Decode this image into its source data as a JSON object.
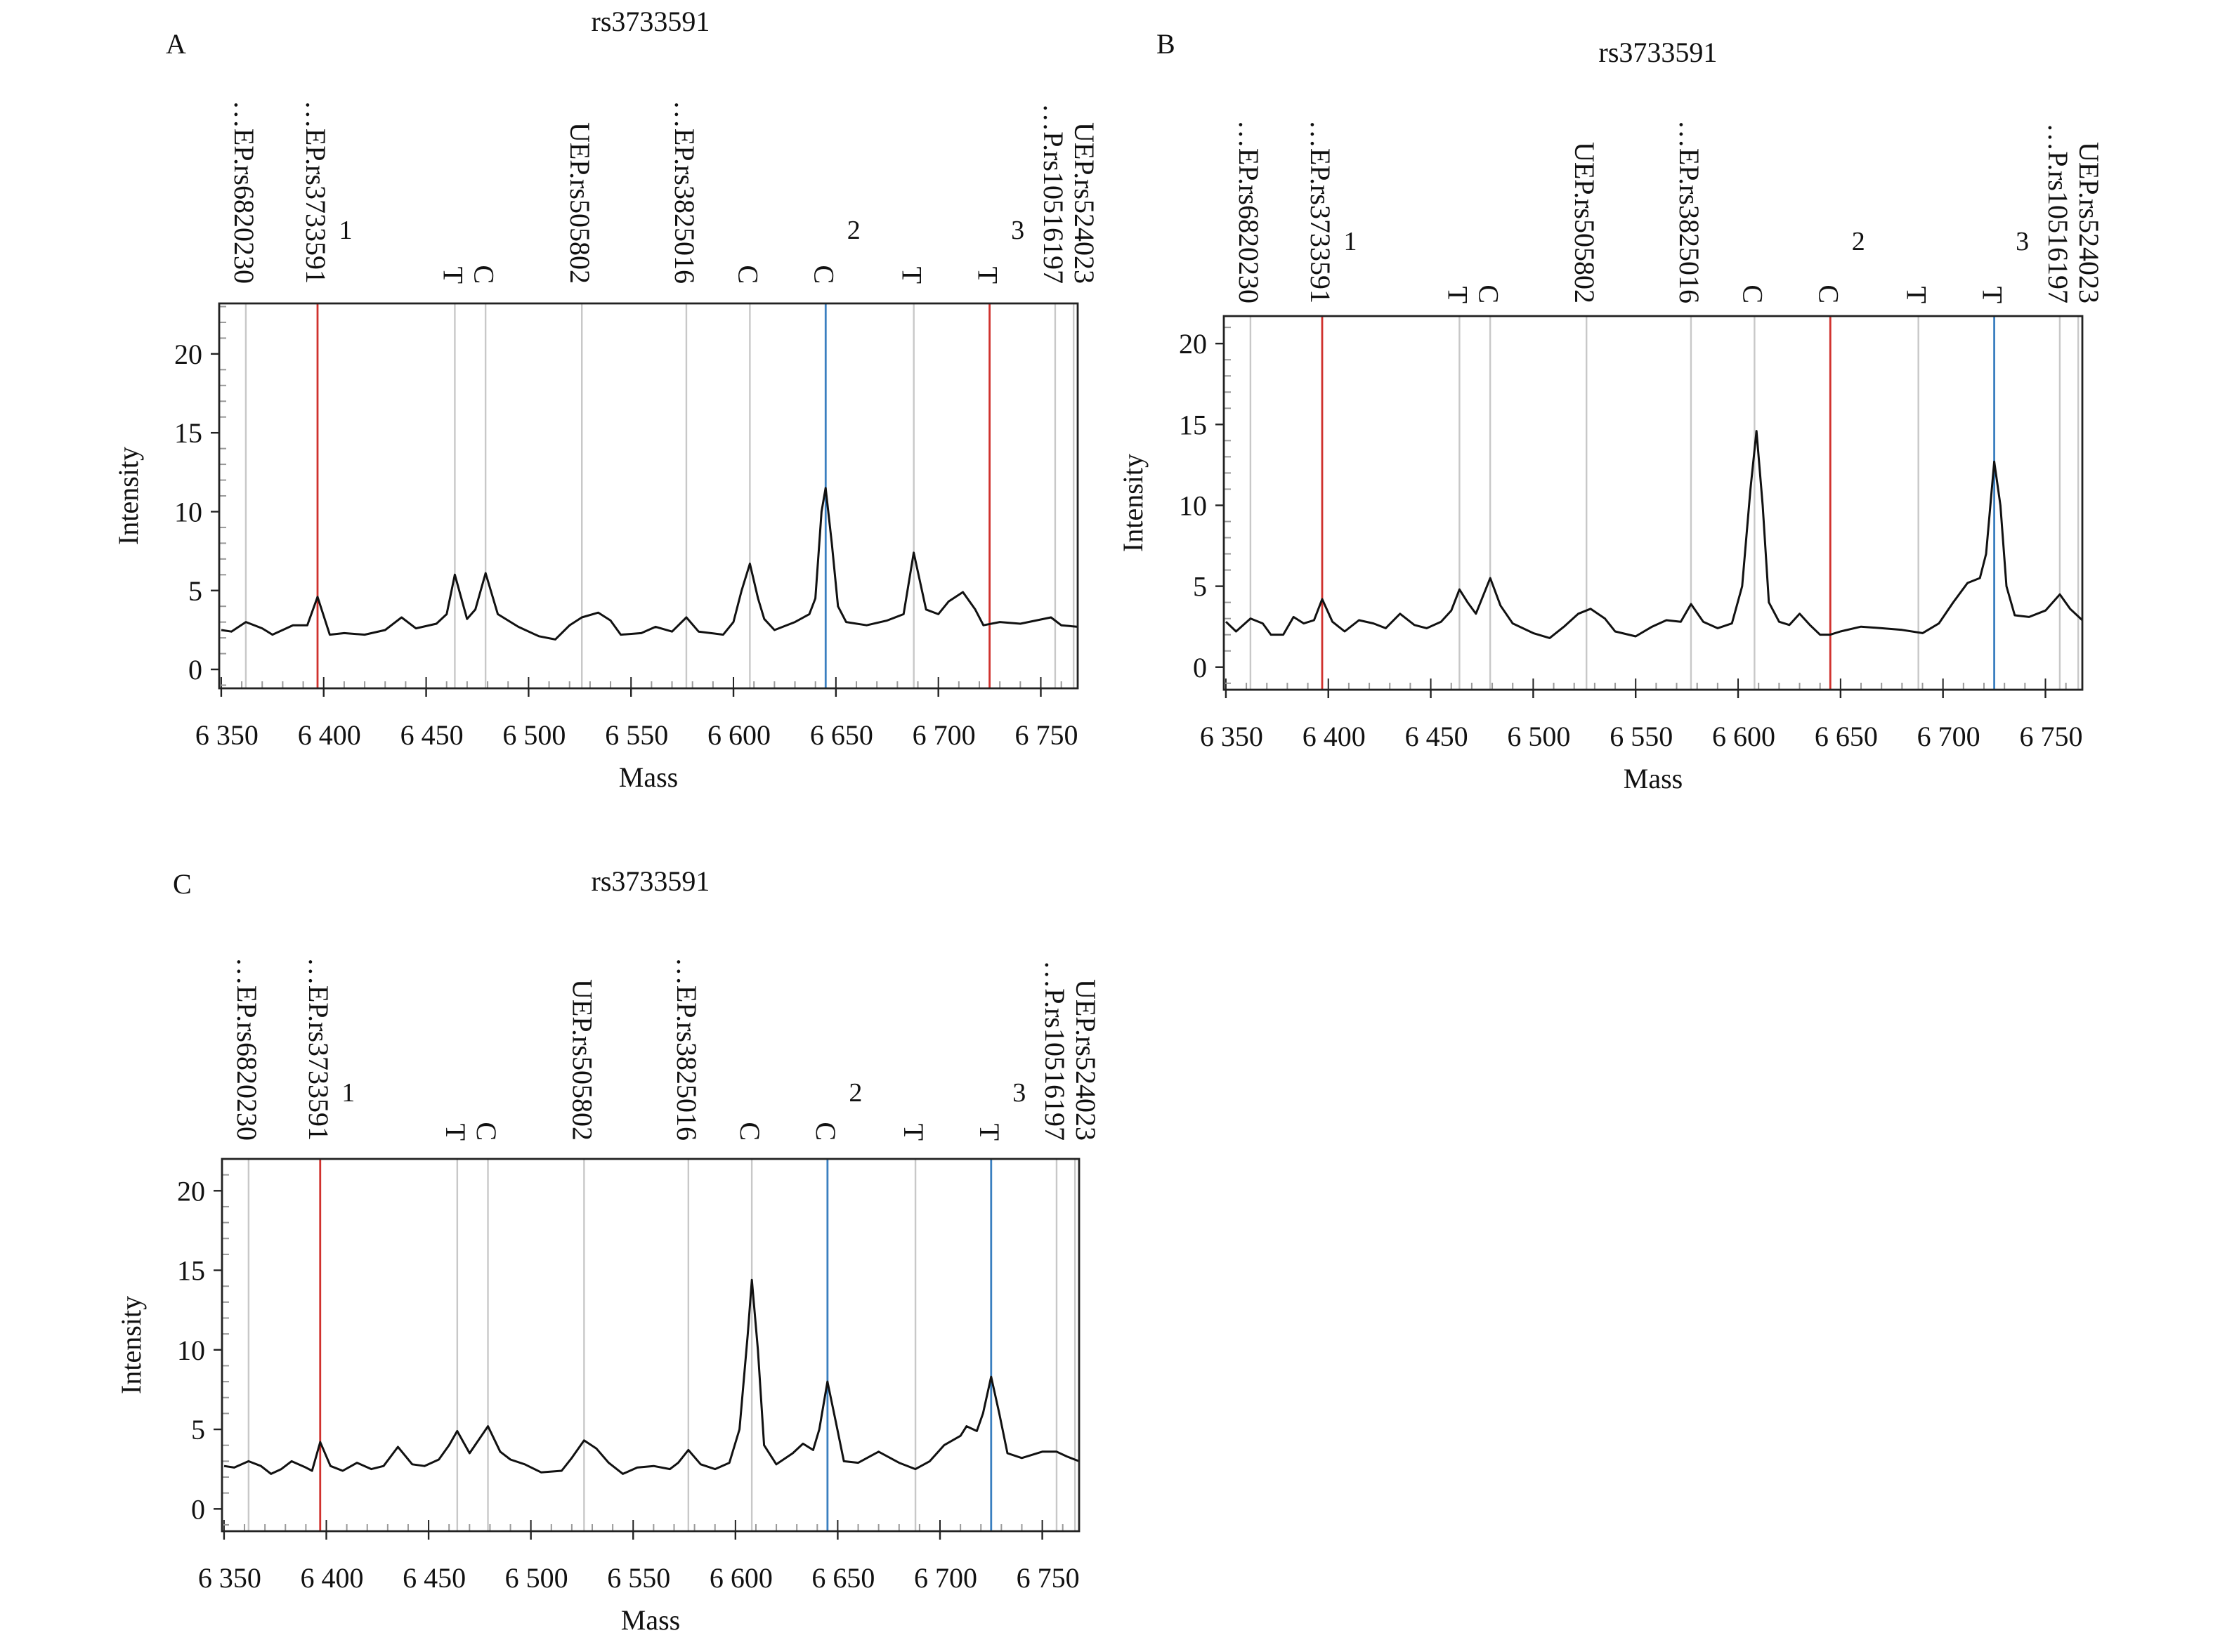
{
  "chart_data": [
    {
      "type": "line",
      "panel_label": "A",
      "title": "rs3733591",
      "xlabel": "Mass",
      "ylabel": "Intensity",
      "xlim": [
        6349,
        6768
      ],
      "ylim": [
        -1.2,
        23.2
      ],
      "xticks": [
        6350,
        6400,
        6450,
        6500,
        6550,
        6600,
        6650,
        6700,
        6750
      ],
      "xtick_labels": [
        "6 350",
        "6 400",
        "6 450",
        "6 500",
        "6 550",
        "6 600",
        "6 650",
        "6 700",
        "6 750"
      ],
      "yticks": [
        0,
        5,
        10,
        15,
        20
      ],
      "ytick_labels": [
        "0",
        "5",
        "10",
        "15",
        "20"
      ],
      "grid": false,
      "markers": [
        {
          "mass": 6362,
          "label": "…EP.rs6820230",
          "color": "#c8c8c8"
        },
        {
          "mass": 6397,
          "label": "…EP.rs3733591",
          "number": "1",
          "color": "#d0312d"
        },
        {
          "mass": 6464,
          "label": "T",
          "color": "#c8c8c8"
        },
        {
          "mass": 6479,
          "label": "C",
          "color": "#c8c8c8"
        },
        {
          "mass": 6526,
          "label": "UEP.rs505802",
          "color": "#c8c8c8"
        },
        {
          "mass": 6577,
          "label": "…EP.rs3825016",
          "color": "#c8c8c8"
        },
        {
          "mass": 6608,
          "label": "C",
          "color": "#c8c8c8"
        },
        {
          "mass": 6645,
          "label": "C",
          "number": "2",
          "color": "#3a7fc0"
        },
        {
          "mass": 6688,
          "label": "T",
          "color": "#c8c8c8"
        },
        {
          "mass": 6725,
          "label": "T",
          "number": "3",
          "color": "#d0312d"
        },
        {
          "mass": 6757,
          "label": "…P.rs10516197",
          "color": "#c8c8c8"
        },
        {
          "mass": 6766,
          "label": "UEP.rs524023",
          "color": "#c8c8c8"
        }
      ],
      "trace": [
        [
          6350,
          2.5
        ],
        [
          6355,
          2.4
        ],
        [
          6362,
          3.0
        ],
        [
          6370,
          2.6
        ],
        [
          6375,
          2.2
        ],
        [
          6385,
          2.8
        ],
        [
          6392,
          2.8
        ],
        [
          6397,
          4.6
        ],
        [
          6403,
          2.2
        ],
        [
          6410,
          2.3
        ],
        [
          6420,
          2.2
        ],
        [
          6430,
          2.5
        ],
        [
          6438,
          3.3
        ],
        [
          6445,
          2.6
        ],
        [
          6455,
          2.9
        ],
        [
          6460,
          3.5
        ],
        [
          6464,
          6.0
        ],
        [
          6470,
          3.2
        ],
        [
          6474,
          3.8
        ],
        [
          6479,
          6.1
        ],
        [
          6485,
          3.5
        ],
        [
          6495,
          2.7
        ],
        [
          6505,
          2.1
        ],
        [
          6513,
          1.9
        ],
        [
          6520,
          2.8
        ],
        [
          6526,
          3.3
        ],
        [
          6534,
          3.6
        ],
        [
          6540,
          3.1
        ],
        [
          6545,
          2.2
        ],
        [
          6555,
          2.3
        ],
        [
          6562,
          2.7
        ],
        [
          6570,
          2.4
        ],
        [
          6577,
          3.3
        ],
        [
          6583,
          2.4
        ],
        [
          6595,
          2.2
        ],
        [
          6600,
          3.0
        ],
        [
          6604,
          5.0
        ],
        [
          6608,
          6.7
        ],
        [
          6612,
          4.5
        ],
        [
          6615,
          3.2
        ],
        [
          6620,
          2.5
        ],
        [
          6630,
          3.0
        ],
        [
          6637,
          3.5
        ],
        [
          6640,
          4.5
        ],
        [
          6643,
          10.0
        ],
        [
          6645,
          11.5
        ],
        [
          6648,
          8.0
        ],
        [
          6651,
          4.0
        ],
        [
          6655,
          3.0
        ],
        [
          6665,
          2.8
        ],
        [
          6675,
          3.1
        ],
        [
          6683,
          3.5
        ],
        [
          6688,
          7.4
        ],
        [
          6694,
          3.8
        ],
        [
          6700,
          3.5
        ],
        [
          6705,
          4.3
        ],
        [
          6712,
          4.9
        ],
        [
          6718,
          3.8
        ],
        [
          6722,
          2.8
        ],
        [
          6730,
          3.0
        ],
        [
          6740,
          2.9
        ],
        [
          6755,
          3.3
        ],
        [
          6760,
          2.8
        ],
        [
          6768,
          2.7
        ]
      ]
    },
    {
      "type": "line",
      "panel_label": "B",
      "title": "rs3733591",
      "xlabel": "Mass",
      "ylabel": "Intensity",
      "xlim": [
        6349,
        6768
      ],
      "ylim": [
        -1.4,
        21.7
      ],
      "xticks": [
        6350,
        6400,
        6450,
        6500,
        6550,
        6600,
        6650,
        6700,
        6750
      ],
      "xtick_labels": [
        "6 350",
        "6 400",
        "6 450",
        "6 500",
        "6 550",
        "6 600",
        "6 650",
        "6 700",
        "6 750"
      ],
      "yticks": [
        0,
        5,
        10,
        15,
        20
      ],
      "ytick_labels": [
        "0",
        "5",
        "10",
        "15",
        "20"
      ],
      "grid": false,
      "markers": [
        {
          "mass": 6362,
          "label": "…EP.rs6820230",
          "color": "#c8c8c8"
        },
        {
          "mass": 6397,
          "label": "…EP.rs3733591",
          "number": "1",
          "color": "#d0312d"
        },
        {
          "mass": 6464,
          "label": "T",
          "color": "#c8c8c8"
        },
        {
          "mass": 6479,
          "label": "C",
          "color": "#c8c8c8"
        },
        {
          "mass": 6526,
          "label": "UEP.rs505802",
          "color": "#c8c8c8"
        },
        {
          "mass": 6577,
          "label": "…EP.rs3825016",
          "color": "#c8c8c8"
        },
        {
          "mass": 6608,
          "label": "C",
          "color": "#c8c8c8"
        },
        {
          "mass": 6645,
          "label": "C",
          "number": "2",
          "color": "#d0312d"
        },
        {
          "mass": 6688,
          "label": "T",
          "color": "#c8c8c8"
        },
        {
          "mass": 6725,
          "label": "T",
          "number": "3",
          "color": "#3a7fc0"
        },
        {
          "mass": 6757,
          "label": "…P.rs10516197",
          "color": "#c8c8c8"
        },
        {
          "mass": 6766,
          "label": "UEP.rs524023",
          "color": "#c8c8c8"
        }
      ],
      "trace": [
        [
          6350,
          2.8
        ],
        [
          6355,
          2.2
        ],
        [
          6362,
          3.0
        ],
        [
          6368,
          2.7
        ],
        [
          6372,
          2.0
        ],
        [
          6378,
          2.0
        ],
        [
          6383,
          3.1
        ],
        [
          6388,
          2.7
        ],
        [
          6393,
          2.9
        ],
        [
          6397,
          4.2
        ],
        [
          6402,
          2.8
        ],
        [
          6408,
          2.2
        ],
        [
          6415,
          2.9
        ],
        [
          6422,
          2.7
        ],
        [
          6428,
          2.4
        ],
        [
          6435,
          3.3
        ],
        [
          6442,
          2.6
        ],
        [
          6448,
          2.4
        ],
        [
          6455,
          2.8
        ],
        [
          6460,
          3.5
        ],
        [
          6464,
          4.8
        ],
        [
          6468,
          4.0
        ],
        [
          6472,
          3.3
        ],
        [
          6479,
          5.5
        ],
        [
          6484,
          3.8
        ],
        [
          6490,
          2.7
        ],
        [
          6500,
          2.1
        ],
        [
          6508,
          1.8
        ],
        [
          6515,
          2.5
        ],
        [
          6522,
          3.3
        ],
        [
          6528,
          3.6
        ],
        [
          6535,
          3.0
        ],
        [
          6540,
          2.2
        ],
        [
          6550,
          1.9
        ],
        [
          6558,
          2.5
        ],
        [
          6565,
          2.9
        ],
        [
          6572,
          2.8
        ],
        [
          6577,
          3.9
        ],
        [
          6583,
          2.8
        ],
        [
          6590,
          2.4
        ],
        [
          6597,
          2.7
        ],
        [
          6602,
          5.0
        ],
        [
          6606,
          11.0
        ],
        [
          6609,
          14.6
        ],
        [
          6612,
          10.0
        ],
        [
          6615,
          4.0
        ],
        [
          6620,
          2.8
        ],
        [
          6625,
          2.6
        ],
        [
          6630,
          3.3
        ],
        [
          6635,
          2.6
        ],
        [
          6640,
          2.0
        ],
        [
          6645,
          2.0
        ],
        [
          6650,
          2.2
        ],
        [
          6660,
          2.5
        ],
        [
          6670,
          2.4
        ],
        [
          6680,
          2.3
        ],
        [
          6690,
          2.1
        ],
        [
          6698,
          2.7
        ],
        [
          6705,
          4.0
        ],
        [
          6712,
          5.2
        ],
        [
          6718,
          5.5
        ],
        [
          6721,
          7.0
        ],
        [
          6725,
          12.7
        ],
        [
          6728,
          10.0
        ],
        [
          6731,
          5.0
        ],
        [
          6735,
          3.2
        ],
        [
          6742,
          3.1
        ],
        [
          6750,
          3.5
        ],
        [
          6757,
          4.5
        ],
        [
          6762,
          3.6
        ],
        [
          6768,
          2.9
        ]
      ]
    },
    {
      "type": "line",
      "panel_label": "C",
      "title": "rs3733591",
      "xlabel": "Mass",
      "ylabel": "Intensity",
      "xlim": [
        6349,
        6768
      ],
      "ylim": [
        -1.4,
        22.0
      ],
      "xticks": [
        6350,
        6400,
        6450,
        6500,
        6550,
        6600,
        6650,
        6700,
        6750
      ],
      "xtick_labels": [
        "6 350",
        "6 400",
        "6 450",
        "6 500",
        "6 550",
        "6 600",
        "6 650",
        "6 700",
        "6 750"
      ],
      "yticks": [
        0,
        5,
        10,
        15,
        20
      ],
      "ytick_labels": [
        "0",
        "5",
        "10",
        "15",
        "20"
      ],
      "grid": false,
      "markers": [
        {
          "mass": 6362,
          "label": "…EP.rs6820230",
          "color": "#c8c8c8"
        },
        {
          "mass": 6397,
          "label": "…EP.rs3733591",
          "number": "1",
          "color": "#d0312d"
        },
        {
          "mass": 6464,
          "label": "T",
          "color": "#c8c8c8"
        },
        {
          "mass": 6479,
          "label": "C",
          "color": "#c8c8c8"
        },
        {
          "mass": 6526,
          "label": "UEP.rs505802",
          "color": "#c8c8c8"
        },
        {
          "mass": 6577,
          "label": "…EP.rs3825016",
          "color": "#c8c8c8"
        },
        {
          "mass": 6608,
          "label": "C",
          "color": "#c8c8c8"
        },
        {
          "mass": 6645,
          "label": "C",
          "number": "2",
          "color": "#3a7fc0"
        },
        {
          "mass": 6688,
          "label": "T",
          "color": "#c8c8c8"
        },
        {
          "mass": 6725,
          "label": "T",
          "number": "3",
          "color": "#3a7fc0"
        },
        {
          "mass": 6757,
          "label": "…P.rs10516197",
          "color": "#c8c8c8"
        },
        {
          "mass": 6766,
          "label": "UEP.rs524023",
          "color": "#c8c8c8"
        }
      ],
      "trace": [
        [
          6350,
          2.7
        ],
        [
          6355,
          2.6
        ],
        [
          6362,
          3.0
        ],
        [
          6368,
          2.7
        ],
        [
          6373,
          2.2
        ],
        [
          6378,
          2.5
        ],
        [
          6383,
          3.0
        ],
        [
          6390,
          2.6
        ],
        [
          6393,
          2.4
        ],
        [
          6397,
          4.2
        ],
        [
          6402,
          2.7
        ],
        [
          6408,
          2.4
        ],
        [
          6415,
          2.9
        ],
        [
          6422,
          2.5
        ],
        [
          6428,
          2.7
        ],
        [
          6435,
          3.9
        ],
        [
          6442,
          2.8
        ],
        [
          6448,
          2.7
        ],
        [
          6455,
          3.1
        ],
        [
          6460,
          4.0
        ],
        [
          6464,
          4.9
        ],
        [
          6470,
          3.5
        ],
        [
          6479,
          5.2
        ],
        [
          6485,
          3.6
        ],
        [
          6490,
          3.1
        ],
        [
          6497,
          2.8
        ],
        [
          6505,
          2.3
        ],
        [
          6515,
          2.4
        ],
        [
          6520,
          3.2
        ],
        [
          6526,
          4.3
        ],
        [
          6532,
          3.8
        ],
        [
          6538,
          2.9
        ],
        [
          6545,
          2.2
        ],
        [
          6552,
          2.6
        ],
        [
          6560,
          2.7
        ],
        [
          6568,
          2.5
        ],
        [
          6572,
          2.9
        ],
        [
          6577,
          3.7
        ],
        [
          6583,
          2.8
        ],
        [
          6590,
          2.5
        ],
        [
          6597,
          2.9
        ],
        [
          6602,
          5.0
        ],
        [
          6606,
          11.0
        ],
        [
          6608,
          14.4
        ],
        [
          6611,
          10.0
        ],
        [
          6614,
          4.0
        ],
        [
          6620,
          2.8
        ],
        [
          6628,
          3.5
        ],
        [
          6633,
          4.1
        ],
        [
          6638,
          3.7
        ],
        [
          6641,
          5.0
        ],
        [
          6645,
          8.0
        ],
        [
          6649,
          5.5
        ],
        [
          6653,
          3.0
        ],
        [
          6660,
          2.9
        ],
        [
          6670,
          3.6
        ],
        [
          6680,
          2.9
        ],
        [
          6688,
          2.5
        ],
        [
          6695,
          3.0
        ],
        [
          6702,
          4.0
        ],
        [
          6710,
          4.6
        ],
        [
          6713,
          5.2
        ],
        [
          6718,
          4.9
        ],
        [
          6721,
          6.0
        ],
        [
          6725,
          8.3
        ],
        [
          6729,
          6.0
        ],
        [
          6733,
          3.5
        ],
        [
          6740,
          3.2
        ],
        [
          6750,
          3.6
        ],
        [
          6757,
          3.6
        ],
        [
          6762,
          3.3
        ],
        [
          6768,
          3.0
        ]
      ]
    }
  ]
}
